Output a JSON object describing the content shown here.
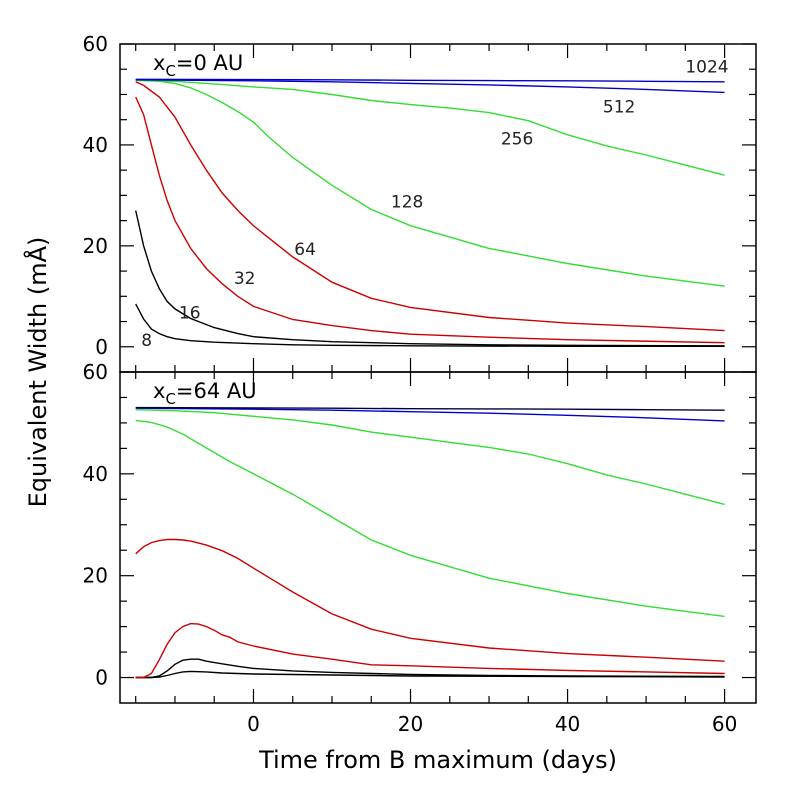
{
  "chart_data": [
    {
      "type": "line",
      "panel_label": "x_C=0 AU",
      "label_prefix": "x",
      "label_sub": "C",
      "label_suffix": "=0 AU",
      "xlim": [
        -17,
        64
      ],
      "ylim": [
        -5,
        60
      ],
      "yticks": [
        0,
        20,
        40,
        60
      ],
      "ytick_labels": [
        "0",
        "20",
        "40",
        "60"
      ],
      "series": [
        {
          "name": "8",
          "color": "#000000",
          "x": [
            -15,
            -14,
            -13,
            -12,
            -11,
            -10,
            -8,
            -5,
            0,
            5,
            10,
            20,
            40,
            60
          ],
          "y": [
            8.5,
            5.5,
            3.5,
            2.6,
            2.0,
            1.6,
            1.2,
            0.9,
            0.6,
            0.4,
            0.3,
            0.2,
            0.1,
            0.1
          ]
        },
        {
          "name": "16",
          "color": "#000000",
          "x": [
            -15,
            -14,
            -13,
            -12,
            -11,
            -10,
            -8,
            -5,
            -2,
            0,
            5,
            10,
            20,
            30,
            40,
            60
          ],
          "y": [
            27,
            20,
            15,
            11.5,
            9,
            7.5,
            5.6,
            3.8,
            2.6,
            2.0,
            1.4,
            1.0,
            0.6,
            0.4,
            0.3,
            0.2
          ]
        },
        {
          "name": "32",
          "color": "#cc0000",
          "x": [
            -15,
            -14,
            -13,
            -12,
            -11,
            -10,
            -8,
            -6,
            -4,
            -2,
            0,
            5,
            10,
            15,
            20,
            30,
            40,
            60
          ],
          "y": [
            49.5,
            46,
            40,
            34,
            29,
            25,
            19.5,
            15.5,
            12.5,
            10.0,
            8.0,
            5.4,
            4.2,
            3.2,
            2.5,
            1.9,
            1.4,
            0.8
          ]
        },
        {
          "name": "64",
          "color": "#cc0000",
          "x": [
            -15,
            -14,
            -12,
            -10,
            -8,
            -6,
            -4,
            -2,
            0,
            2,
            5,
            10,
            15,
            20,
            30,
            40,
            50,
            60
          ],
          "y": [
            52.5,
            51.8,
            49.5,
            45.5,
            40,
            35,
            30.5,
            27,
            24,
            21.5,
            17.8,
            12.8,
            9.6,
            7.8,
            5.8,
            4.7,
            4.0,
            3.2
          ]
        },
        {
          "name": "128",
          "color": "#33dd33",
          "x": [
            -15,
            -12,
            -10,
            -8,
            -6,
            -4,
            -2,
            0,
            2,
            5,
            10,
            15,
            20,
            30,
            40,
            50,
            60
          ],
          "y": [
            52.8,
            52.6,
            52.2,
            51.3,
            50.0,
            48.4,
            46.6,
            44.5,
            41.5,
            37.5,
            32,
            27.2,
            24.0,
            19.5,
            16.5,
            14.0,
            12.0
          ]
        },
        {
          "name": "256",
          "color": "#33dd33",
          "x": [
            -15,
            -10,
            -5,
            0,
            5,
            10,
            15,
            20,
            25,
            30,
            35,
            40,
            45,
            50,
            55,
            60
          ],
          "y": [
            52.8,
            52.6,
            52.1,
            51.5,
            51.0,
            50.0,
            48.8,
            48.0,
            47.3,
            46.4,
            44.8,
            42.0,
            39.8,
            38.0,
            36.0,
            34.0
          ]
        },
        {
          "name": "512",
          "color": "#0000cc",
          "x": [
            -15,
            0,
            10,
            20,
            30,
            40,
            50,
            60
          ],
          "y": [
            52.9,
            52.7,
            52.5,
            52.2,
            51.9,
            51.5,
            51.0,
            50.4
          ]
        },
        {
          "name": "1024",
          "color": "#0000cc",
          "x": [
            -15,
            0,
            10,
            20,
            30,
            40,
            50,
            60
          ],
          "y": [
            53.0,
            52.95,
            52.9,
            52.8,
            52.75,
            52.7,
            52.6,
            52.5
          ]
        }
      ],
      "curve_labels": [
        {
          "text": "8",
          "x": -14.3,
          "y": 1.3
        },
        {
          "text": "16",
          "x": -9.5,
          "y": 6.8
        },
        {
          "text": "32",
          "x": -2.5,
          "y": 13.6
        },
        {
          "text": "64",
          "x": 5.2,
          "y": 19.4
        },
        {
          "text": "128",
          "x": 17.5,
          "y": 28.8
        },
        {
          "text": "256",
          "x": 31.5,
          "y": 41.3
        },
        {
          "text": "512",
          "x": 44.5,
          "y": 47.6
        },
        {
          "text": "1024",
          "x": 55,
          "y": 55.5
        }
      ]
    },
    {
      "type": "line",
      "panel_label": "x_C=64 AU",
      "label_prefix": "x",
      "label_sub": "C",
      "label_suffix": "=64 AU",
      "xlim": [
        -17,
        64
      ],
      "ylim": [
        -5,
        60
      ],
      "yticks": [
        0,
        20,
        40,
        60
      ],
      "ytick_labels": [
        "0",
        "20",
        "40",
        "60"
      ],
      "series": [
        {
          "name": "8",
          "color": "#000000",
          "x": [
            -15,
            -13,
            -12,
            -11,
            -10,
            -9,
            -8,
            -6,
            -4,
            -2,
            0,
            5,
            10,
            20,
            40,
            60
          ],
          "y": [
            0,
            0,
            0.1,
            0.4,
            0.8,
            1.1,
            1.2,
            1.1,
            0.9,
            0.8,
            0.7,
            0.6,
            0.5,
            0.3,
            0.2,
            0.1
          ]
        },
        {
          "name": "16",
          "color": "#000000",
          "x": [
            -15,
            -13,
            -12,
            -11,
            -10,
            -9,
            -8,
            -7,
            -6,
            -4,
            -2,
            0,
            5,
            10,
            20,
            30,
            40,
            60
          ],
          "y": [
            0,
            0,
            0.3,
            1.3,
            2.6,
            3.4,
            3.6,
            3.6,
            3.2,
            2.7,
            2.2,
            1.8,
            1.3,
            1.0,
            0.6,
            0.4,
            0.3,
            0.2
          ]
        },
        {
          "name": "32",
          "color": "#cc0000",
          "x": [
            -15,
            -14,
            -13,
            -12,
            -11,
            -10,
            -9,
            -8,
            -7,
            -6,
            -5,
            -4,
            -3,
            -2,
            0,
            5,
            10,
            15,
            20,
            30,
            40,
            60
          ],
          "y": [
            0,
            0,
            0.8,
            3.5,
            6.5,
            8.8,
            10.0,
            10.6,
            10.5,
            10.0,
            9.3,
            8.4,
            7.9,
            7.0,
            6.2,
            4.6,
            3.6,
            2.5,
            2.3,
            1.8,
            1.4,
            0.8
          ]
        },
        {
          "name": "64",
          "color": "#cc0000",
          "x": [
            -15,
            -14,
            -13,
            -12,
            -11,
            -10,
            -9,
            -8,
            -6,
            -4,
            -2,
            0,
            2,
            5,
            10,
            15,
            20,
            30,
            40,
            50,
            60
          ],
          "y": [
            24.3,
            25.7,
            26.5,
            26.9,
            27.1,
            27.1,
            27.0,
            26.8,
            26.0,
            24.9,
            23.4,
            21.5,
            19.6,
            16.8,
            12.5,
            9.5,
            7.7,
            5.8,
            4.7,
            4.0,
            3.2
          ]
        },
        {
          "name": "128",
          "color": "#33dd33",
          "x": [
            -15,
            -13,
            -11,
            -9,
            -7,
            -5,
            -3,
            0,
            5,
            10,
            15,
            20,
            30,
            40,
            50,
            60
          ],
          "y": [
            50.5,
            50.1,
            49.2,
            47.8,
            46.0,
            44.2,
            42.4,
            40.0,
            36.0,
            31.5,
            27.0,
            24.0,
            19.5,
            16.5,
            14.0,
            12.0
          ]
        },
        {
          "name": "256",
          "color": "#33dd33",
          "x": [
            -15,
            -10,
            -5,
            0,
            5,
            10,
            15,
            20,
            25,
            30,
            35,
            40,
            45,
            50,
            55,
            60
          ],
          "y": [
            52.6,
            52.4,
            52.0,
            51.3,
            50.6,
            49.6,
            48.2,
            47.2,
            46.2,
            45.2,
            43.9,
            42.0,
            39.8,
            38.0,
            36.0,
            34.0
          ]
        },
        {
          "name": "512",
          "color": "#0000cc",
          "x": [
            -15,
            0,
            10,
            20,
            30,
            40,
            50,
            60
          ],
          "y": [
            52.9,
            52.7,
            52.5,
            52.2,
            51.9,
            51.5,
            51.0,
            50.4
          ]
        },
        {
          "name": "1024",
          "color": "#000044",
          "x": [
            -15,
            0,
            10,
            20,
            30,
            40,
            50,
            60
          ],
          "y": [
            53.0,
            52.95,
            52.9,
            52.8,
            52.75,
            52.7,
            52.6,
            52.5
          ]
        }
      ],
      "curve_labels": []
    }
  ],
  "axes": {
    "xlabel": "Time from B maximum (days)",
    "ylabel": "Equivalent Width (mÅ)",
    "xticks": [
      0,
      20,
      40,
      60
    ],
    "xtick_labels": [
      "0",
      "20",
      "40",
      "60"
    ]
  }
}
